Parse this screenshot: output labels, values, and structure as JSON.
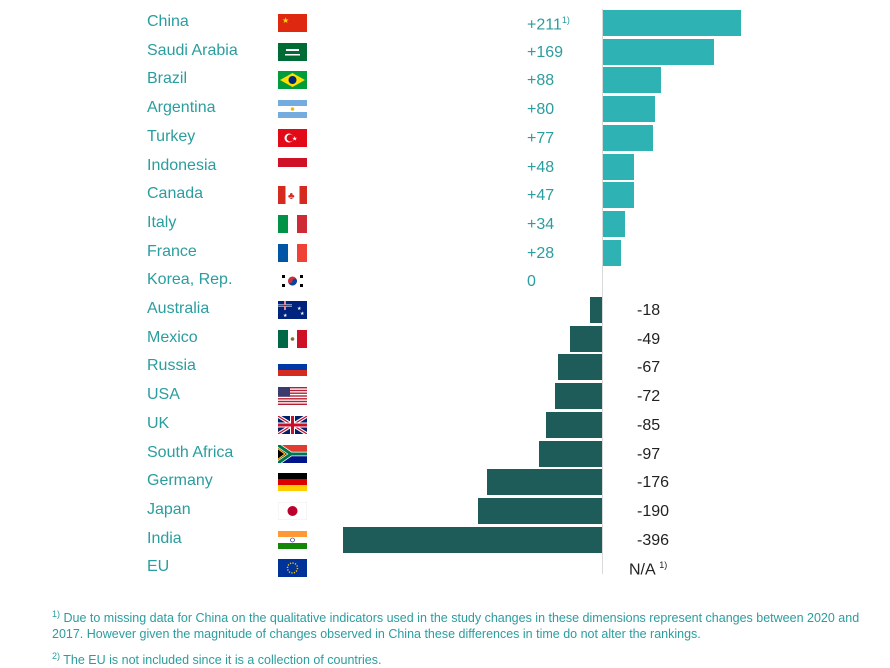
{
  "chart_data": {
    "type": "bar",
    "orientation": "horizontal",
    "categories": [
      "China",
      "Saudi Arabia",
      "Brazil",
      "Argentina",
      "Turkey",
      "Indonesia",
      "Canada",
      "Italy",
      "France",
      "Korea, Rep.",
      "Australia",
      "Mexico",
      "Russia",
      "USA",
      "UK",
      "South Africa",
      "Germany",
      "Japan",
      "India",
      "EU"
    ],
    "values": [
      211,
      169,
      88,
      80,
      77,
      48,
      47,
      34,
      28,
      0,
      -18,
      -49,
      -67,
      -72,
      -85,
      -97,
      -176,
      -190,
      -396,
      null
    ],
    "labels": [
      "+211",
      "+169",
      "+88",
      "+80",
      "+77",
      "+48",
      "+47",
      "+34",
      "+28",
      "0",
      "-18",
      "-49",
      "-67",
      "-72",
      "-85",
      "-97",
      "-176",
      "-190",
      "-396",
      "N/A"
    ],
    "label_notes": {
      "China": "1)",
      "EU": "1)"
    },
    "positive_color": "#2fb2b3",
    "negative_color": "#1d5c58"
  },
  "footnotes": [
    {
      "mark": "1)",
      "text": "Due to missing data for China on the qualitative indicators used in the study changes in these dimensions represent changes between 2020 and 2017. However given the magnitude of changes observed in China these differences in time do not alter the rankings."
    },
    {
      "mark": "2)",
      "text": "The EU is not included since it is a collection of countries."
    }
  ]
}
